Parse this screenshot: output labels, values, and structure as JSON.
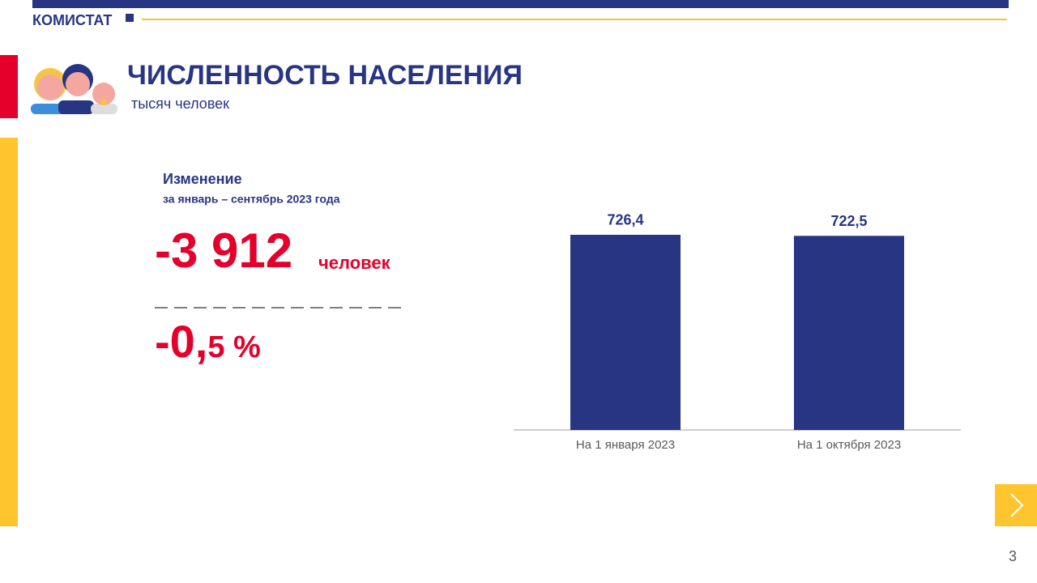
{
  "header": {
    "brand": "КОМИСТАТ",
    "title": "ЧИСЛЕННОСТЬ НАСЕЛЕНИЯ",
    "subtitle": "тысяч человек"
  },
  "summary": {
    "heading": "Изменение",
    "period": "за январь – сентябрь 2023 года",
    "absolute": "-3 912",
    "absolute_unit": "человек",
    "percent_main": "-0,",
    "percent_rest": "5 %"
  },
  "chart_data": {
    "type": "bar",
    "categories": [
      "На 1 января 2023",
      "На 1 октября 2023"
    ],
    "values": [
      726.4,
      722.5
    ],
    "value_labels": [
      "726,4",
      "722,5"
    ],
    "color": "#283583"
  },
  "page_number": "3"
}
